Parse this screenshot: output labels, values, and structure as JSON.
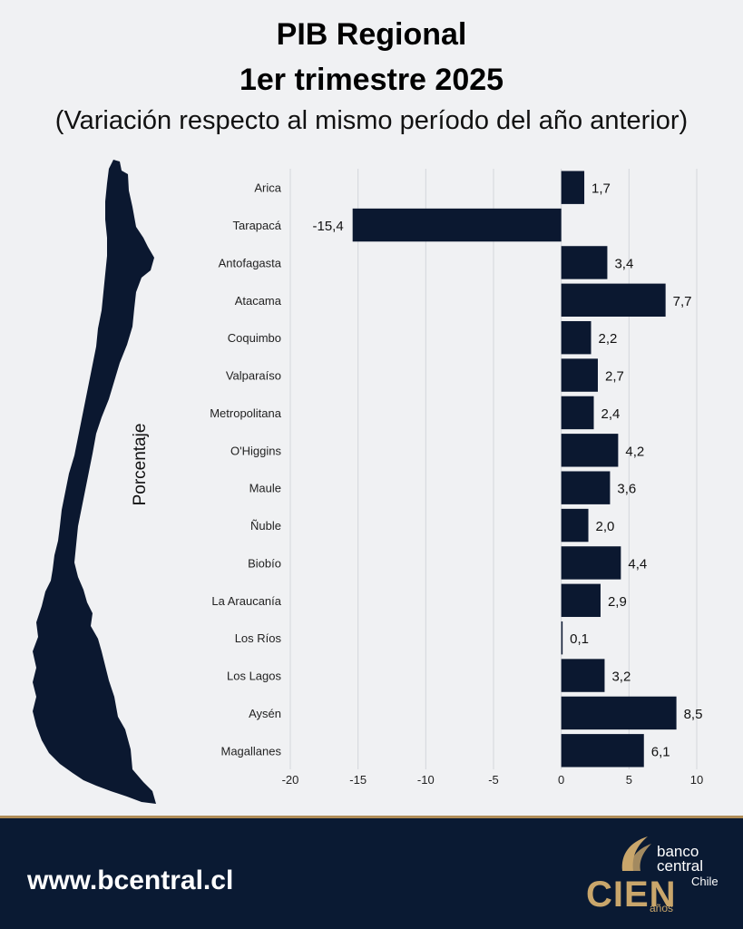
{
  "header": {
    "title_line1": "PIB Regional",
    "title_line2": "1er trimestre 2025",
    "subtitle": "(Variación respecto al mismo período del año anterior)"
  },
  "chart_data": {
    "type": "bar",
    "orientation": "horizontal",
    "ylabel": "Porcentaje",
    "categories": [
      "Arica",
      "Tarapacá",
      "Antofagasta",
      "Atacama",
      "Coquimbo",
      "Valparaíso",
      "Metropolitana",
      "O'Higgins",
      "Maule",
      "Ñuble",
      "Biobío",
      "La Araucanía",
      "Los Ríos",
      "Los Lagos",
      "Aysén",
      "Magallanes"
    ],
    "values": [
      1.7,
      -15.4,
      3.4,
      7.7,
      2.2,
      2.7,
      2.4,
      4.2,
      3.6,
      2.0,
      4.4,
      2.9,
      0.1,
      3.2,
      8.5,
      6.1
    ],
    "value_labels": [
      "1,7",
      "-15,4",
      "3,4",
      "7,7",
      "2,2",
      "2,7",
      "2,4",
      "4,2",
      "3,6",
      "2,0",
      "4,4",
      "2,9",
      "0,1",
      "3,2",
      "8,5",
      "6,1"
    ],
    "xlim": [
      -20,
      10
    ],
    "xticks": [
      -20,
      -15,
      -10,
      -5,
      0,
      5,
      10
    ],
    "xtick_labels": [
      "-20",
      "-15",
      "-10",
      "-5",
      "0",
      "5",
      "10"
    ],
    "grid": "vertical",
    "bar_color": "#0b1830"
  },
  "decor": {
    "map_icon": "chile-map-silhouette"
  },
  "footer": {
    "url": "www.bcentral.cl",
    "logo_banco": "banco",
    "logo_central": "central",
    "logo_chile": "Chile",
    "logo_word": "CIEN",
    "logo_anos": "años",
    "bg_color": "#0a1a33",
    "accent_color": "#c9a66b"
  }
}
